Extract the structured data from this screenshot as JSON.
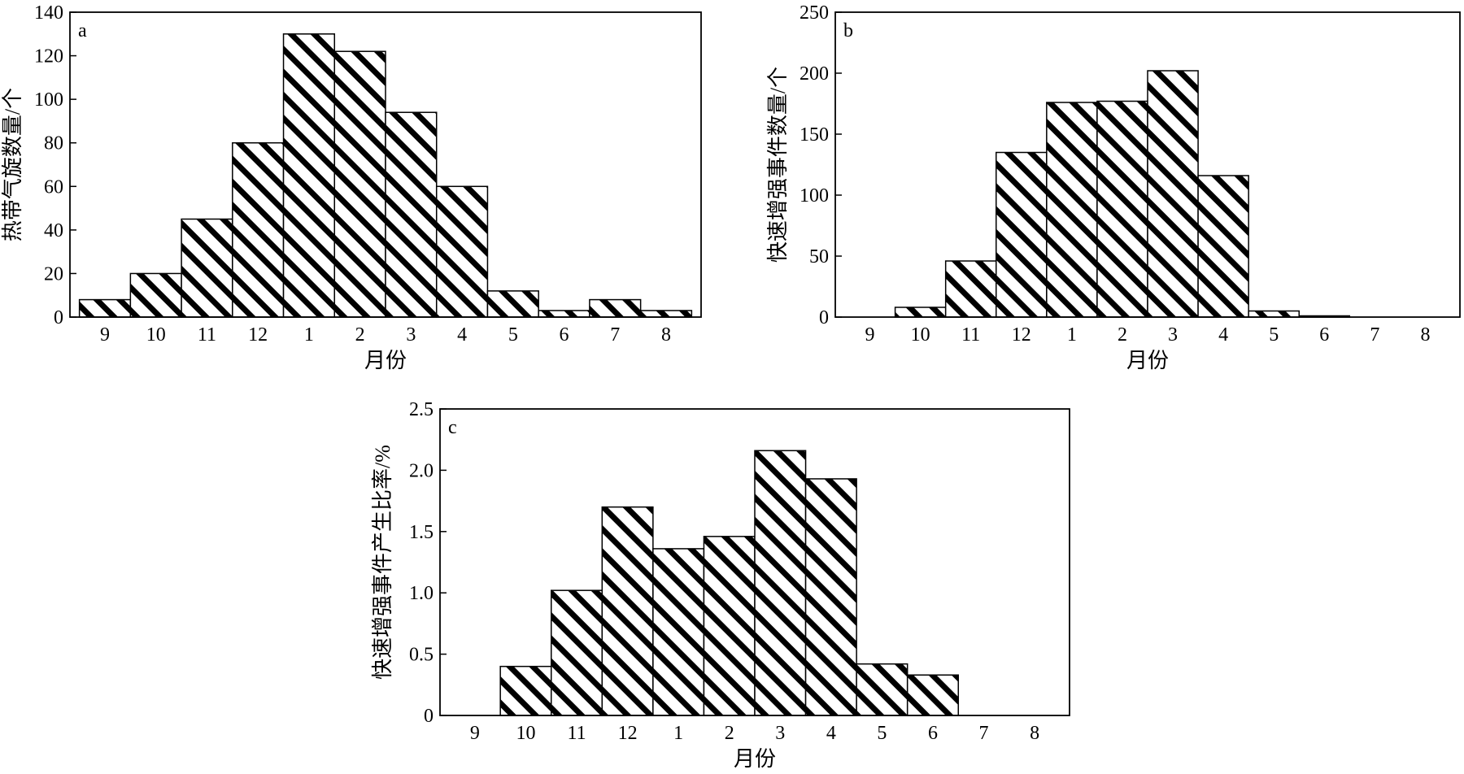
{
  "colors": {
    "bar_fill_pattern": "#000000",
    "background": "#ffffff",
    "axis": "#000000"
  },
  "chart_data": [
    {
      "panel": "a",
      "type": "bar",
      "categories": [
        "9",
        "10",
        "11",
        "12",
        "1",
        "2",
        "3",
        "4",
        "5",
        "6",
        "7",
        "8"
      ],
      "values": [
        8,
        20,
        45,
        80,
        130,
        122,
        94,
        60,
        12,
        3,
        8,
        3
      ],
      "xlabel": "月份",
      "ylabel": "热带气旋数量/个",
      "ylim": [
        0,
        140
      ],
      "yticks": [
        0,
        20,
        40,
        60,
        80,
        100,
        120,
        140
      ],
      "ytick_labels": [
        "0",
        "20",
        "40",
        "60",
        "80",
        "100",
        "120",
        "140"
      ],
      "bar_style": "diagonal hatch",
      "grid": false,
      "legend": "none"
    },
    {
      "panel": "b",
      "type": "bar",
      "categories": [
        "9",
        "10",
        "11",
        "12",
        "1",
        "2",
        "3",
        "4",
        "5",
        "6",
        "7",
        "8"
      ],
      "values": [
        0,
        8,
        46,
        135,
        176,
        177,
        202,
        116,
        5,
        1,
        0,
        0
      ],
      "xlabel": "月份",
      "ylabel": "快速增强事件数量/个",
      "ylim": [
        0,
        250
      ],
      "yticks": [
        0,
        50,
        100,
        150,
        200,
        250
      ],
      "ytick_labels": [
        "0",
        "50",
        "100",
        "150",
        "200",
        "250"
      ],
      "bar_style": "diagonal hatch",
      "grid": false,
      "legend": "none"
    },
    {
      "panel": "c",
      "type": "bar",
      "categories": [
        "9",
        "10",
        "11",
        "12",
        "1",
        "2",
        "3",
        "4",
        "5",
        "6",
        "7",
        "8"
      ],
      "values": [
        0,
        0.4,
        1.02,
        1.7,
        1.36,
        1.46,
        2.16,
        1.93,
        0.42,
        0.33,
        0,
        0
      ],
      "xlabel": "月份",
      "ylabel": "快速增强事件产生比率/%",
      "ylim": [
        0,
        2.5
      ],
      "yticks": [
        0,
        0.5,
        1.0,
        1.5,
        2.0,
        2.5
      ],
      "ytick_labels": [
        "0",
        "0.5",
        "1.0",
        "1.5",
        "2.0",
        "2.5"
      ],
      "bar_style": "diagonal hatch",
      "grid": false,
      "legend": "none"
    }
  ]
}
